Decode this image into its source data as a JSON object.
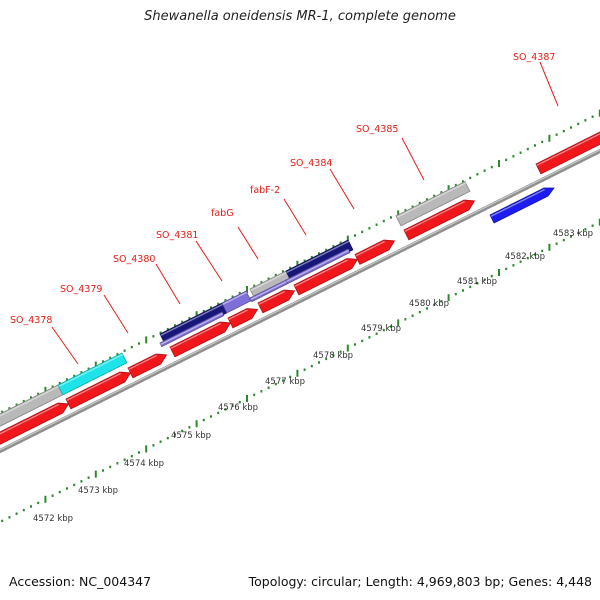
{
  "title": "Shewanella oneidensis MR-1, complete genome",
  "footer": {
    "accession": "Accession: NC_004347",
    "summary": "Topology: circular; Length: 4,969,803 bp; Genes: 4,448"
  },
  "colors": {
    "backbone": "#8f8f8f",
    "ruler_dots": "#2a8a2a",
    "label": "#e0201a",
    "leader": "#e0201a",
    "forward_red": "#f0161a",
    "reverse_red": "#f0161a",
    "gray_feature": "#b9b9b9",
    "cyan_feature": "#1ee3e8",
    "navy_feature": "#17177a",
    "lavender_feature": "#7f6fd8",
    "blue_feature": "#1c1cee"
  },
  "kbp_labels": [
    "4572 kbp",
    "4573 kbp",
    "4574 kbp",
    "4575 kbp",
    "4576 kbp",
    "4577 kbp",
    "4578 kbp",
    "4579 kbp",
    "4580 kbp",
    "4581 kbp",
    "4582 kbp",
    "4583 kbp"
  ],
  "gene_labels": [
    "SO_4378",
    "SO_4379",
    "SO_4380",
    "SO_4381",
    "fabG",
    "fabF-2",
    "SO_4384",
    "SO_4385",
    "SO_4387"
  ]
}
